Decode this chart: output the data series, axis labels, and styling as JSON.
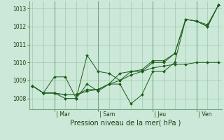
{
  "xlabel": "Pression niveau de la mer( hPa )",
  "bg_color": "#cce8d8",
  "grid_color": "#99ccaa",
  "line_color": "#1a5c1a",
  "marker_color": "#1a5c1a",
  "ylim": [
    1007.4,
    1013.4
  ],
  "yticks": [
    1008,
    1009,
    1010,
    1011,
    1012,
    1013
  ],
  "x_tick_labels": [
    " | Mar",
    " | Sam",
    " | Jeu",
    " | Ven"
  ],
  "x_tick_positions": [
    2,
    6,
    11,
    15
  ],
  "series": [
    [
      1008.7,
      1008.3,
      1008.3,
      1008.2,
      1008.2,
      1008.4,
      1008.5,
      1008.8,
      1009.4,
      1009.5,
      1009.6,
      1010.1,
      1010.1,
      1010.5,
      1012.4,
      1012.3,
      1012.1,
      1013.2
    ],
    [
      1008.7,
      1008.3,
      1009.2,
      1009.2,
      1008.0,
      1010.4,
      1009.5,
      1009.4,
      1009.0,
      1009.3,
      1009.5,
      1009.7,
      1009.8,
      1009.9,
      1009.9,
      1010.0,
      1010.0,
      1010.0
    ],
    [
      1008.7,
      1008.3,
      1008.3,
      1008.0,
      1008.0,
      1008.8,
      1008.4,
      1008.8,
      1008.8,
      1007.7,
      1008.2,
      1009.5,
      1009.5,
      1010.0,
      1012.4,
      1012.3,
      1012.0,
      1013.2
    ],
    [
      1008.7,
      1008.3,
      1008.3,
      1008.2,
      1008.2,
      1008.5,
      1008.5,
      1008.8,
      1009.0,
      1009.5,
      1009.5,
      1010.0,
      1010.0,
      1010.5,
      1012.4,
      1012.3,
      1012.0,
      1013.2
    ]
  ],
  "n_points": 18,
  "x_minor_ticks": [
    0,
    1,
    2,
    3,
    4,
    5,
    6,
    7,
    8,
    9,
    10,
    11,
    12,
    13,
    14,
    15,
    16,
    17
  ],
  "day_vlines": [
    2,
    6,
    11,
    15
  ]
}
